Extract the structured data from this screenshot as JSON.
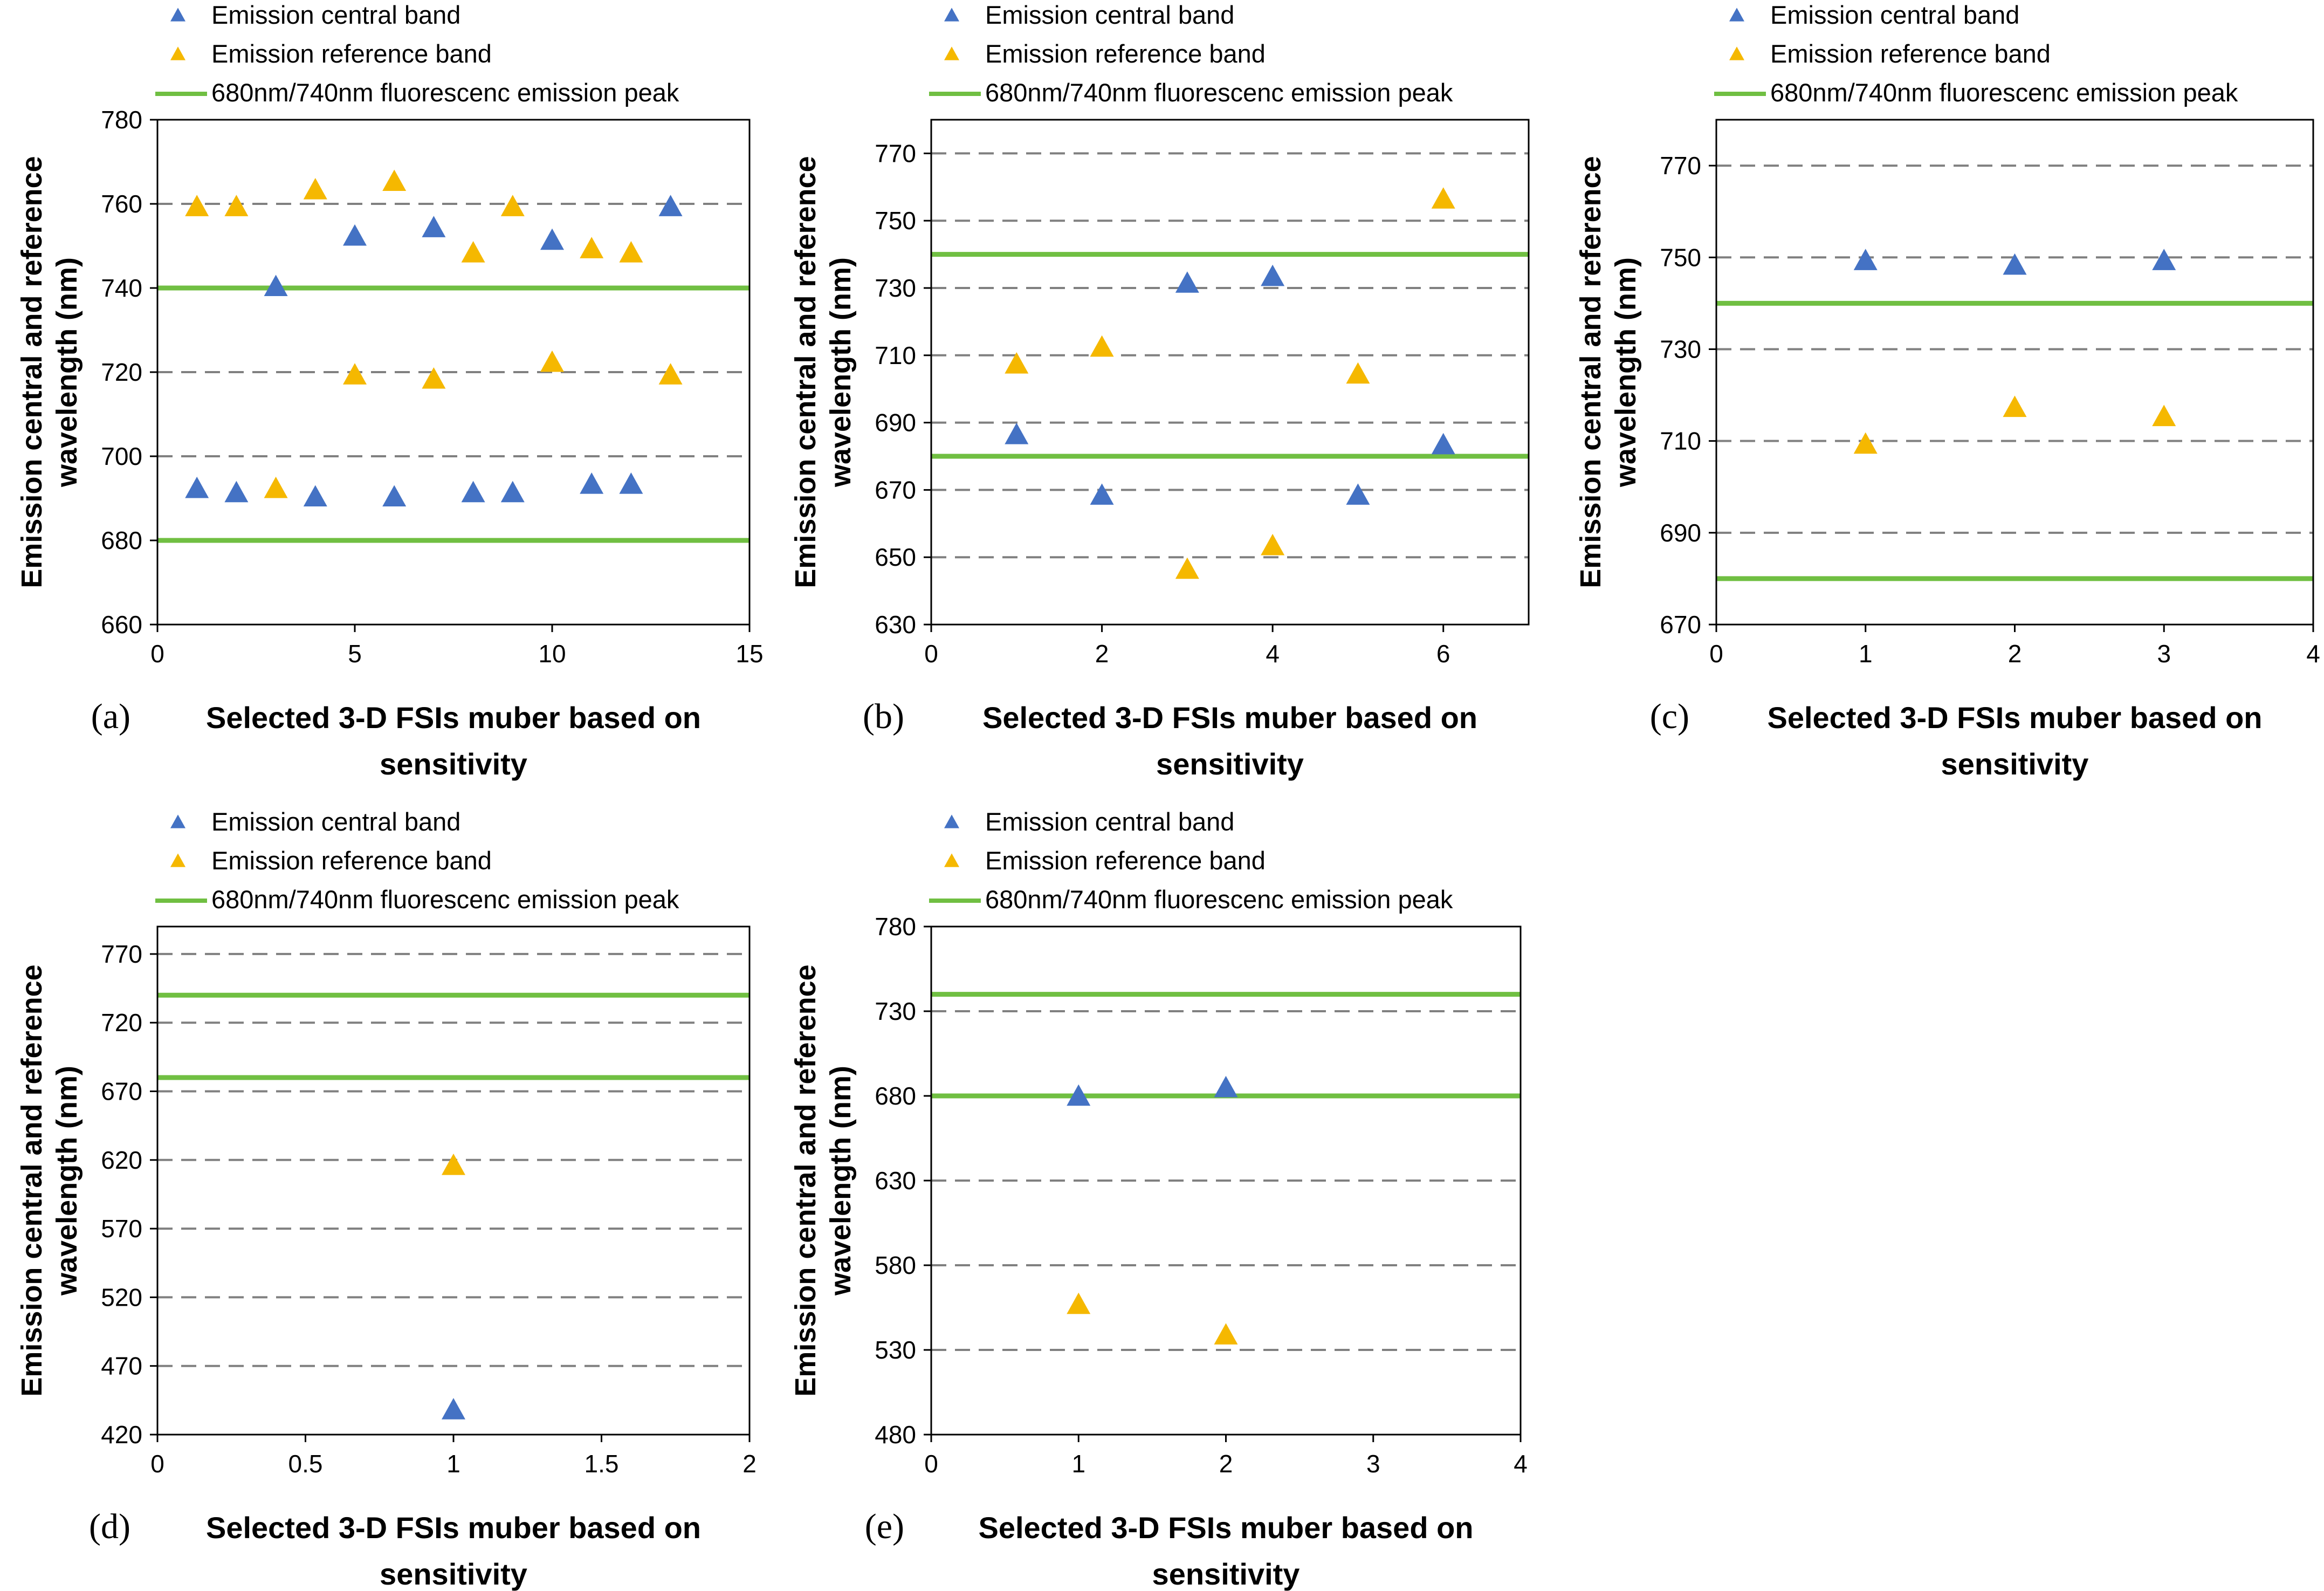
{
  "figure": {
    "colors": {
      "central": "#4472C4",
      "reference": "#F5B800",
      "peak": "#70BF42",
      "grid": "#808080",
      "axis": "#000000"
    }
  },
  "chart_data": [
    {
      "panel": "a",
      "type": "scatter",
      "title": "",
      "panel_label": "(a)",
      "xlabel": "Selected 3-D FSIs muber based on sensitivity",
      "xlabel_lines": [
        "Selected 3-D FSIs muber based on",
        "sensitivity"
      ],
      "ylabel": "Emission central and reference wavelength (nm)",
      "ylabel_lines": [
        "Emission central and reference",
        "wavelength (nm)"
      ],
      "xlim": [
        0,
        15
      ],
      "ylim": [
        660,
        780
      ],
      "xticks": [
        0,
        5,
        10,
        15
      ],
      "yticks": [
        660,
        680,
        700,
        720,
        740,
        760,
        780
      ],
      "grid_y": [
        700,
        720,
        760
      ],
      "legend": [
        "Emission central band",
        "Emission reference band",
        "680nm/740nm fluorescenc emission peak"
      ],
      "peaks": [
        680,
        740
      ],
      "series": [
        {
          "name": "Emission central band",
          "points": [
            [
              1,
              692
            ],
            [
              2,
              691
            ],
            [
              3,
              740
            ],
            [
              4,
              690
            ],
            [
              5,
              752
            ],
            [
              6,
              690
            ],
            [
              7,
              754
            ],
            [
              8,
              691
            ],
            [
              9,
              691
            ],
            [
              10,
              751
            ],
            [
              11,
              693
            ],
            [
              12,
              693
            ],
            [
              13,
              759
            ]
          ]
        },
        {
          "name": "Emission reference band",
          "points": [
            [
              1,
              759
            ],
            [
              2,
              759
            ],
            [
              3,
              692
            ],
            [
              4,
              763
            ],
            [
              5,
              719
            ],
            [
              6,
              765
            ],
            [
              7,
              718
            ],
            [
              8,
              748
            ],
            [
              9,
              759
            ],
            [
              10,
              722
            ],
            [
              11,
              749
            ],
            [
              12,
              748
            ],
            [
              13,
              719
            ]
          ]
        }
      ]
    },
    {
      "panel": "b",
      "type": "scatter",
      "title": "",
      "panel_label": "(b)",
      "xlabel": "Selected 3-D FSIs muber based on sensitivity",
      "xlabel_lines": [
        "Selected 3-D FSIs muber based on",
        "sensitivity"
      ],
      "ylabel": "Emission central and reference wavelength (nm)",
      "ylabel_lines": [
        "Emission central and reference",
        "wavelength (nm)"
      ],
      "xlim": [
        0,
        7
      ],
      "ylim": [
        630,
        780
      ],
      "xticks": [
        0,
        2,
        4,
        6
      ],
      "yticks": [
        630,
        650,
        670,
        690,
        710,
        730,
        750,
        770
      ],
      "grid_y": [
        650,
        670,
        690,
        710,
        730,
        750,
        770
      ],
      "legend": [
        "Emission central band",
        "Emission reference band",
        "680nm/740nm fluorescenc emission peak"
      ],
      "peaks": [
        680,
        740
      ],
      "series": [
        {
          "name": "Emission central band",
          "points": [
            [
              1,
              686
            ],
            [
              2,
              668
            ],
            [
              3,
              731
            ],
            [
              4,
              733
            ],
            [
              5,
              668
            ],
            [
              6,
              683
            ]
          ]
        },
        {
          "name": "Emission reference band",
          "points": [
            [
              1,
              707
            ],
            [
              2,
              712
            ],
            [
              3,
              646
            ],
            [
              4,
              653
            ],
            [
              5,
              704
            ],
            [
              6,
              756
            ]
          ]
        }
      ]
    },
    {
      "panel": "c",
      "type": "scatter",
      "title": "",
      "panel_label": "(c)",
      "xlabel": "Selected 3-D FSIs muber based on sensitivity",
      "xlabel_lines": [
        "Selected 3-D FSIs muber based on",
        "sensitivity"
      ],
      "ylabel": "Emission central and reference wavelength (nm)",
      "ylabel_lines": [
        "Emission central and reference",
        "wavelength (nm)"
      ],
      "xlim": [
        0,
        4
      ],
      "ylim": [
        670,
        780
      ],
      "xticks": [
        0,
        1,
        2,
        3,
        4
      ],
      "yticks": [
        670,
        690,
        710,
        730,
        750,
        770
      ],
      "grid_y": [
        690,
        710,
        730,
        750,
        770
      ],
      "legend": [
        "Emission central band",
        "Emission reference band",
        "680nm/740nm fluorescenc emission peak"
      ],
      "peaks": [
        680,
        740
      ],
      "series": [
        {
          "name": "Emission central band",
          "points": [
            [
              1,
              749
            ],
            [
              2,
              748
            ],
            [
              3,
              749
            ]
          ]
        },
        {
          "name": "Emission reference band",
          "points": [
            [
              1,
              709
            ],
            [
              2,
              717
            ],
            [
              3,
              715
            ]
          ]
        }
      ]
    },
    {
      "panel": "d",
      "type": "scatter",
      "title": "",
      "panel_label": "(d)",
      "xlabel": "Selected 3-D FSIs muber based on sensitivity",
      "xlabel_lines": [
        "Selected 3-D FSIs muber based on",
        "sensitivity"
      ],
      "ylabel": "Emission central and reference wavelength (nm)",
      "ylabel_lines": [
        "Emission central and reference",
        "wavelength (nm)"
      ],
      "xlim": [
        0,
        2
      ],
      "ylim": [
        420,
        790
      ],
      "xticks": [
        0,
        0.5,
        1,
        1.5,
        2
      ],
      "yticks": [
        420,
        470,
        520,
        570,
        620,
        670,
        720,
        770
      ],
      "grid_y": [
        470,
        520,
        570,
        620,
        670,
        720,
        770
      ],
      "legend": [
        "Emission central band",
        "Emission reference band",
        "680nm/740nm fluorescenc emission peak"
      ],
      "peaks": [
        680,
        740
      ],
      "series": [
        {
          "name": "Emission central band",
          "points": [
            [
              1,
              437
            ]
          ]
        },
        {
          "name": "Emission reference band",
          "points": [
            [
              1,
              615
            ]
          ]
        }
      ]
    },
    {
      "panel": "e",
      "type": "scatter",
      "title": "",
      "panel_label": "(e)",
      "xlabel": "Selected 3-D FSIs muber based on sensitivity",
      "xlabel_lines": [
        "Selected 3-D FSIs muber based on",
        "sensitivity"
      ],
      "ylabel": "Emission central and reference wavelength (nm)",
      "ylabel_lines": [
        "Emission central and reference",
        "wavelength (nm)"
      ],
      "xlim": [
        0,
        4
      ],
      "ylim": [
        480,
        780
      ],
      "xticks": [
        0,
        1,
        2,
        3,
        4
      ],
      "yticks": [
        480,
        530,
        580,
        630,
        680,
        730,
        780
      ],
      "grid_y": [
        530,
        580,
        630,
        730
      ],
      "legend": [
        "Emission central band",
        "Emission reference band",
        "680nm/740nm fluorescenc emission peak"
      ],
      "peaks": [
        680,
        740
      ],
      "series": [
        {
          "name": "Emission central band",
          "points": [
            [
              1,
              679
            ],
            [
              2,
              684
            ]
          ]
        },
        {
          "name": "Emission reference band",
          "points": [
            [
              1,
              556
            ],
            [
              2,
              538
            ]
          ]
        }
      ]
    }
  ]
}
